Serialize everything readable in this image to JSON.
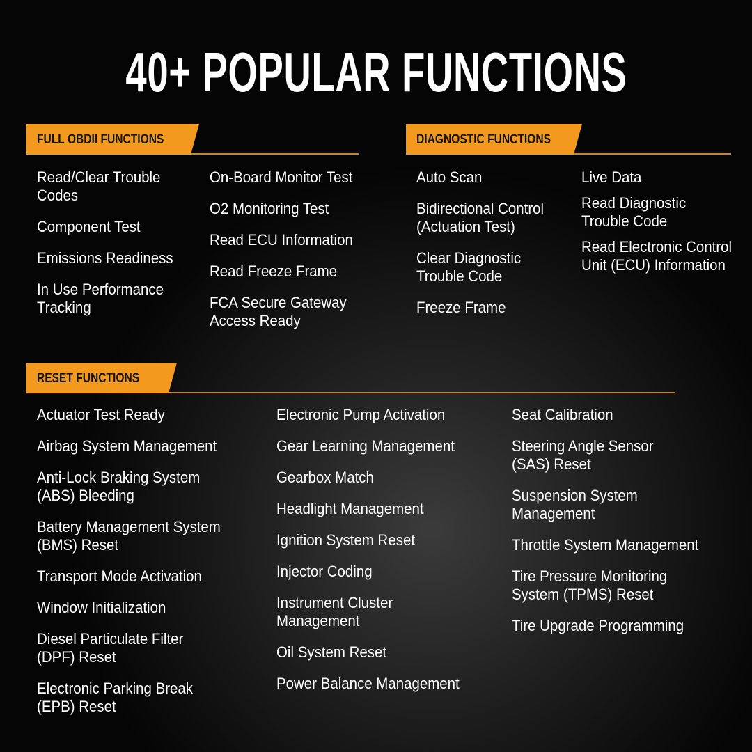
{
  "title": "40+ POPULAR FUNCTIONS",
  "accent_color": "#f39a1e",
  "sections": {
    "obd": {
      "header": "FULL OBDII FUNCTIONS",
      "col1": [
        "Read/Clear Trouble\nCodes",
        "Component Test",
        "Emissions Readiness",
        "In Use Performance\nTracking"
      ],
      "col2": [
        "On-Board Monitor Test",
        "O2 Monitoring Test",
        "Read ECU Information",
        "Read Freeze Frame",
        "FCA Secure Gateway\nAccess Ready"
      ]
    },
    "diag": {
      "header": "DIAGNOSTIC FUNCTIONS",
      "col1": [
        "Auto Scan",
        "Bidirectional Control\n(Actuation Test)",
        "Clear Diagnostic\nTrouble Code",
        "Freeze Frame"
      ],
      "col2": [
        "Live Data",
        "Read Diagnostic\nTrouble Code",
        "Read Electronic Control\nUnit (ECU) Information"
      ]
    },
    "reset": {
      "header": "RESET FUNCTIONS",
      "col1": [
        "Actuator Test Ready",
        "Airbag System Management",
        "Anti-Lock Braking System\n(ABS) Bleeding",
        "Battery Management System\n(BMS) Reset",
        "Transport Mode Activation",
        "Window Initialization",
        "Diesel Particulate Filter\n(DPF) Reset",
        "Electronic Parking Break\n(EPB) Reset"
      ],
      "col2": [
        "Electronic Pump Activation",
        "Gear Learning Management",
        "Gearbox Match",
        "Headlight Management",
        "Ignition System Reset",
        "Injector Coding",
        "Instrument Cluster\nManagement",
        "Oil System Reset",
        "Power Balance Management"
      ],
      "col3": [
        "Seat Calibration",
        "Steering Angle Sensor\n(SAS) Reset",
        "Suspension System\nManagement",
        "Throttle System Management",
        "Tire Pressure Monitoring\nSystem (TPMS) Reset",
        "Tire Upgrade Programming"
      ]
    }
  }
}
